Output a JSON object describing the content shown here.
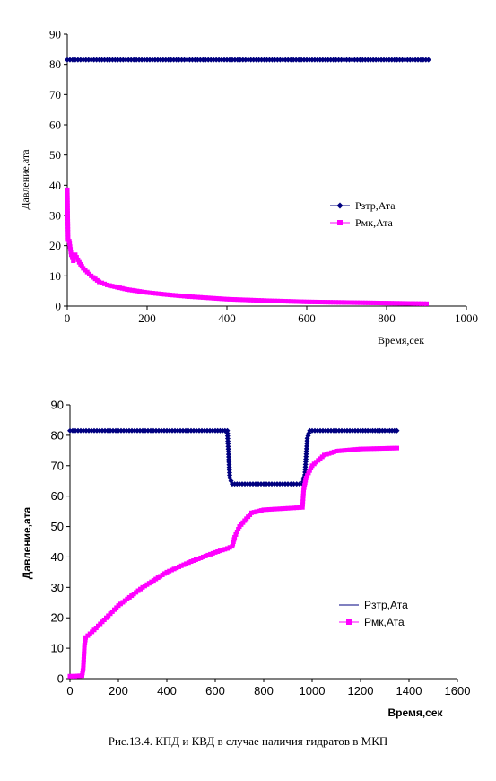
{
  "chart_data": [
    {
      "type": "scatter",
      "title": "",
      "xlabel": "Время,сек",
      "ylabel": "Давление,ата",
      "xlim": [
        0,
        1000
      ],
      "ylim": [
        0,
        90
      ],
      "xticks": [
        "0",
        "200",
        "400",
        "600",
        "800",
        "1000"
      ],
      "yticks": [
        "0",
        "10",
        "20",
        "30",
        "40",
        "50",
        "60",
        "70",
        "80",
        "90"
      ],
      "legend_position": "right-middle",
      "grid": false,
      "series": [
        {
          "name": "Рзтр,Ата",
          "color": "#000080",
          "marker": "diamond",
          "x": [
            0,
            100,
            200,
            300,
            400,
            500,
            600,
            700,
            800,
            905
          ],
          "y": [
            81.5,
            81.5,
            81.5,
            81.5,
            81.5,
            81.5,
            81.5,
            81.5,
            81.5,
            81.5
          ]
        },
        {
          "name": "Рмк,Ата",
          "color": "#FF00FF",
          "marker": "square",
          "x": [
            0,
            2,
            5,
            10,
            15,
            20,
            30,
            40,
            60,
            80,
            100,
            150,
            200,
            250,
            300,
            400,
            500,
            600,
            700,
            800,
            900
          ],
          "y": [
            38.5,
            22,
            21.5,
            17,
            15,
            17,
            14.5,
            12.5,
            10,
            8,
            7,
            5.5,
            4.5,
            3.8,
            3.2,
            2.3,
            1.8,
            1.4,
            1.2,
            1.0,
            0.8
          ]
        }
      ]
    },
    {
      "type": "scatter",
      "title": "",
      "xlabel": "Время,сек",
      "ylabel": "Давление,ата",
      "xlim": [
        0,
        1600
      ],
      "ylim": [
        0,
        90
      ],
      "xticks": [
        "0",
        "200",
        "400",
        "600",
        "800",
        "1000",
        "1200",
        "1400",
        "1600"
      ],
      "yticks": [
        "0",
        "10",
        "20",
        "30",
        "40",
        "50",
        "60",
        "70",
        "80",
        "90"
      ],
      "legend_position": "right-bottom",
      "grid": false,
      "series": [
        {
          "name": "Рзтр,Ата",
          "color": "#000080",
          "marker": "diamond",
          "x": [
            0,
            100,
            200,
            300,
            400,
            500,
            600,
            650,
            660,
            670,
            700,
            800,
            900,
            960,
            970,
            980,
            990,
            1000,
            1100,
            1200,
            1250,
            1300,
            1350
          ],
          "y": [
            81.5,
            81.5,
            81.5,
            81.5,
            81.5,
            81.5,
            81.5,
            81.5,
            66,
            64,
            64,
            64,
            64,
            64,
            67,
            79,
            81.5,
            81.5,
            81.5,
            81.5,
            81.5,
            81.5,
            81.5
          ]
        },
        {
          "name": "Рмк,Ата",
          "color": "#FF00FF",
          "marker": "square",
          "x": [
            0,
            20,
            50,
            55,
            60,
            65,
            100,
            150,
            200,
            300,
            400,
            500,
            600,
            650,
            670,
            680,
            700,
            750,
            800,
            900,
            960,
            965,
            975,
            1000,
            1050,
            1100,
            1200,
            1300,
            1350
          ],
          "y": [
            0.8,
            0.8,
            1,
            3.5,
            11,
            13.5,
            16,
            20,
            24,
            30,
            35,
            38.5,
            41.5,
            42.8,
            43.5,
            46.5,
            50,
            54.5,
            55.5,
            56,
            56.3,
            62,
            66,
            70,
            73.5,
            74.8,
            75.5,
            75.7,
            75.8
          ]
        }
      ]
    }
  ],
  "caption": "Рис.13.4.    КПД и КВД в случае наличия гидратов в МКП"
}
